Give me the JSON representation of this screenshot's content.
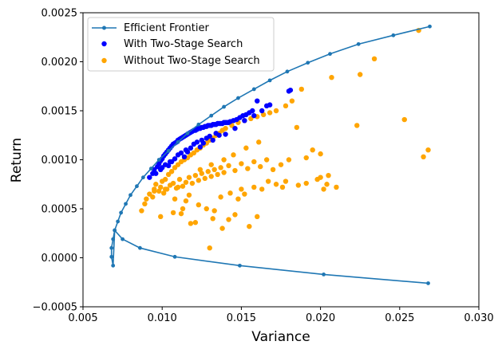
{
  "chart_data": {
    "type": "scatter",
    "xlabel": "Variance",
    "ylabel": "Return",
    "xlim": [
      0.005,
      0.03
    ],
    "ylim": [
      -0.0005,
      0.0025
    ],
    "xticks": [
      "0.005",
      "0.010",
      "0.015",
      "0.020",
      "0.025",
      "0.030"
    ],
    "yticks": [
      "−0.0005",
      "0.0000",
      "0.0005",
      "0.0010",
      "0.0015",
      "0.0020",
      "0.0025"
    ],
    "xtick_values": [
      0.005,
      0.01,
      0.015,
      0.02,
      0.025,
      0.03
    ],
    "ytick_values": [
      -0.0005,
      0.0,
      0.0005,
      0.001,
      0.0015,
      0.002,
      0.0025
    ],
    "grid": false,
    "legend_placement": "top-left",
    "series": [
      {
        "name": "Efficient Frontier",
        "kind": "line",
        "color": "#1f77b4",
        "x": [
          0.0269,
          0.0246,
          0.0224,
          0.0206,
          0.0192,
          0.0179,
          0.0168,
          0.0158,
          0.0148,
          0.0139,
          0.0131,
          0.0123,
          0.0116,
          0.011,
          0.0104,
          0.0098,
          0.0093,
          0.0088,
          0.0084,
          0.008,
          0.0077,
          0.0074,
          0.0072,
          0.007,
          0.0069,
          0.0068,
          0.0068,
          0.0069,
          0.007,
          0.0075,
          0.0086,
          0.0108,
          0.0149,
          0.0202,
          0.0268
        ],
        "y": [
          0.00236,
          0.00227,
          0.00218,
          0.00208,
          0.00199,
          0.0019,
          0.00181,
          0.00172,
          0.00163,
          0.00154,
          0.00145,
          0.00136,
          0.00127,
          0.00118,
          0.00109,
          0.001,
          0.00091,
          0.00082,
          0.00073,
          0.00064,
          0.00055,
          0.00046,
          0.00037,
          0.00028,
          0.00019,
          0.0001,
          1e-05,
          -8e-05,
          0.00028,
          0.00019,
          0.0001,
          1e-05,
          -8e-05,
          -0.00017,
          -0.00026
        ]
      },
      {
        "name": "With Two-Stage Search",
        "kind": "scatter",
        "color": "#0000ff",
        "generated": false,
        "x": [
          0.0092,
          0.0094,
          0.0095,
          0.0097,
          0.0098,
          0.0099,
          0.01,
          0.0101,
          0.0102,
          0.0103,
          0.0104,
          0.0105,
          0.0106,
          0.0107,
          0.0108,
          0.0109,
          0.011,
          0.0111,
          0.0112,
          0.0113,
          0.0114,
          0.0115,
          0.0116,
          0.0117,
          0.0118,
          0.0119,
          0.012,
          0.0121,
          0.0122,
          0.0123,
          0.0124,
          0.0125,
          0.0126,
          0.0127,
          0.0128,
          0.0129,
          0.013,
          0.0131,
          0.0132,
          0.0133,
          0.0134,
          0.0135,
          0.0136,
          0.0137,
          0.0138,
          0.0139,
          0.014,
          0.0141,
          0.0142,
          0.0143,
          0.0145,
          0.0147,
          0.0149,
          0.0151,
          0.0153,
          0.0155,
          0.0157,
          0.016,
          0.0163,
          0.0166,
          0.0168,
          0.018,
          0.0181,
          0.01,
          0.0105,
          0.011,
          0.0115,
          0.012,
          0.0125,
          0.013,
          0.0102,
          0.0108,
          0.0112,
          0.0118,
          0.0122,
          0.0128,
          0.0134,
          0.0096,
          0.0104,
          0.0114,
          0.0124,
          0.0132,
          0.014,
          0.0099,
          0.0106,
          0.0116,
          0.0126,
          0.0136,
          0.0146,
          0.0152,
          0.0158
        ],
        "y": [
          0.00082,
          0.00086,
          0.0009,
          0.00093,
          0.00096,
          0.00099,
          0.00101,
          0.00104,
          0.00106,
          0.00108,
          0.0011,
          0.00112,
          0.00114,
          0.00116,
          0.00117,
          0.00118,
          0.0012,
          0.00121,
          0.00122,
          0.00123,
          0.00124,
          0.00125,
          0.00126,
          0.00127,
          0.00128,
          0.00129,
          0.0013,
          0.0013,
          0.00131,
          0.00132,
          0.00132,
          0.00133,
          0.00133,
          0.00134,
          0.00134,
          0.00135,
          0.00135,
          0.00135,
          0.00136,
          0.00136,
          0.00136,
          0.00137,
          0.00137,
          0.00137,
          0.00137,
          0.00138,
          0.00138,
          0.00138,
          0.00138,
          0.00139,
          0.0014,
          0.00141,
          0.00143,
          0.00145,
          0.00146,
          0.00148,
          0.0015,
          0.0016,
          0.0015,
          0.00155,
          0.00156,
          0.0017,
          0.00171,
          0.00092,
          0.00098,
          0.00105,
          0.0011,
          0.00116,
          0.0012,
          0.00124,
          0.00095,
          0.00101,
          0.00107,
          0.00112,
          0.00118,
          0.00122,
          0.00127,
          0.00086,
          0.00094,
          0.00103,
          0.00113,
          0.0012,
          0.00126,
          0.0009,
          0.00098,
          0.00108,
          0.00117,
          0.00125,
          0.00132,
          0.0014,
          0.00145
        ]
      },
      {
        "name": "Without Two-Stage Search",
        "kind": "scatter",
        "color": "#ffa500",
        "x": [
          0.0087,
          0.0089,
          0.009,
          0.0092,
          0.0094,
          0.0095,
          0.0096,
          0.0098,
          0.0099,
          0.01,
          0.0101,
          0.0102,
          0.0103,
          0.0104,
          0.0105,
          0.0106,
          0.0107,
          0.0108,
          0.0109,
          0.011,
          0.0111,
          0.0112,
          0.0113,
          0.0114,
          0.0115,
          0.0116,
          0.0117,
          0.0118,
          0.0119,
          0.012,
          0.0121,
          0.0122,
          0.0123,
          0.0124,
          0.0125,
          0.0126,
          0.0127,
          0.0128,
          0.0129,
          0.013,
          0.0131,
          0.0132,
          0.0133,
          0.0134,
          0.0135,
          0.0136,
          0.0137,
          0.0138,
          0.0139,
          0.014,
          0.0142,
          0.0144,
          0.0146,
          0.0148,
          0.015,
          0.0152,
          0.0154,
          0.0156,
          0.0158,
          0.016,
          0.0162,
          0.0164,
          0.0166,
          0.0168,
          0.017,
          0.0172,
          0.0175,
          0.0178,
          0.018,
          0.0182,
          0.0185,
          0.0188,
          0.0191,
          0.0195,
          0.0198,
          0.02,
          0.0202,
          0.0204,
          0.0207,
          0.021,
          0.0223,
          0.0225,
          0.0234,
          0.0253,
          0.0262,
          0.0265,
          0.0268,
          0.013,
          0.0155,
          0.016,
          0.0142,
          0.0118,
          0.0112,
          0.0128,
          0.0148,
          0.0163,
          0.0172,
          0.0176,
          0.0178,
          0.0186,
          0.0191,
          0.02,
          0.0205,
          0.0107,
          0.0099,
          0.0113,
          0.0121,
          0.0132,
          0.0138,
          0.0146,
          0.0152,
          0.0108,
          0.0115,
          0.0123,
          0.0133,
          0.0137,
          0.0143,
          0.015,
          0.0158,
          0.0167,
          0.0095,
          0.0102,
          0.011,
          0.0117,
          0.0124,
          0.0131,
          0.0139,
          0.0145,
          0.0153,
          0.0161
        ],
        "y": [
          0.00048,
          0.00055,
          0.0006,
          0.00065,
          0.00062,
          0.0007,
          0.00075,
          0.00068,
          0.00072,
          0.00078,
          0.00066,
          0.0008,
          0.0007,
          0.00085,
          0.00074,
          0.00088,
          0.00076,
          0.00092,
          0.00071,
          0.00095,
          0.0008,
          0.00098,
          0.00073,
          0.001,
          0.00077,
          0.00102,
          0.00082,
          0.00105,
          0.00076,
          0.00107,
          0.00084,
          0.0011,
          0.00079,
          0.00112,
          0.00086,
          0.00115,
          0.00081,
          0.00117,
          0.00088,
          0.0012,
          0.00083,
          0.00122,
          0.0009,
          0.00125,
          0.00085,
          0.00127,
          0.00092,
          0.0013,
          0.00087,
          0.00132,
          0.00094,
          0.00135,
          0.00089,
          0.00138,
          0.00096,
          0.0014,
          0.00091,
          0.00142,
          0.00098,
          0.00144,
          0.00093,
          0.00146,
          0.001,
          0.00148,
          0.0009,
          0.0015,
          0.00095,
          0.00155,
          0.001,
          0.0016,
          0.00133,
          0.00172,
          0.00102,
          0.0011,
          0.0008,
          0.00106,
          0.0007,
          0.00075,
          0.00184,
          0.00072,
          0.00135,
          0.00187,
          0.00203,
          0.00141,
          0.00232,
          0.00103,
          0.0011,
          0.0001,
          0.00032,
          0.00042,
          0.00039,
          0.00035,
          0.00045,
          0.0005,
          0.0006,
          0.0007,
          0.00075,
          0.00072,
          0.00078,
          0.00074,
          0.00076,
          0.00082,
          0.00084,
          0.00046,
          0.00042,
          0.0005,
          0.00036,
          0.0004,
          0.0003,
          0.00044,
          0.00065,
          0.0006,
          0.00058,
          0.00054,
          0.00048,
          0.00062,
          0.00066,
          0.0007,
          0.00072,
          0.00078,
          0.00068,
          0.0007,
          0.00072,
          0.00064,
          0.0009,
          0.00095,
          0.001,
          0.00105,
          0.00112,
          0.00118
        ]
      }
    ]
  }
}
